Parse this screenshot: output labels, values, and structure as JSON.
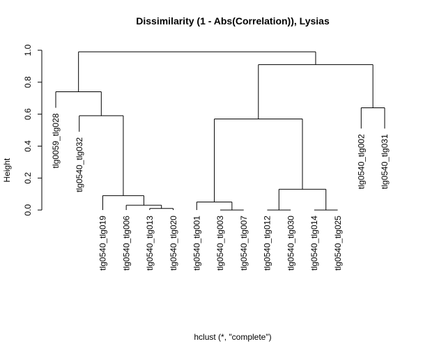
{
  "chart_data": {
    "type": "dendrogram",
    "title": "Dissimilarity (1 - Abs(Correlation)), Lysias",
    "xlabel": "hclust (*, \"complete\")",
    "ylabel": "Height",
    "ylim": [
      0,
      1.0
    ],
    "yticks": [
      "0.0",
      "0.2",
      "0.4",
      "0.6",
      "0.8",
      "1.0"
    ],
    "leaves": [
      {
        "label": "tlg0059_tlg028",
        "height": 0.64
      },
      {
        "label": "tlg0540_tlg032",
        "height": 0.49
      },
      {
        "label": "tlg0540_tlg019",
        "height": 0.0
      },
      {
        "label": "tlg0540_tlg006",
        "height": 0.0
      },
      {
        "label": "tlg0540_tlg013",
        "height": 0.0
      },
      {
        "label": "tlg0540_tlg020",
        "height": 0.0
      },
      {
        "label": "tlg0540_tlg001",
        "height": 0.0
      },
      {
        "label": "tlg0540_tlg003",
        "height": 0.0
      },
      {
        "label": "tlg0540_tlg007",
        "height": 0.0
      },
      {
        "label": "tlg0540_tlg012",
        "height": 0.0
      },
      {
        "label": "tlg0540_tlg030",
        "height": 0.0
      },
      {
        "label": "tlg0540_tlg014",
        "height": 0.0
      },
      {
        "label": "tlg0540_tlg025",
        "height": 0.0
      },
      {
        "label": "tlg0540_tlg002",
        "height": 0.51
      },
      {
        "label": "tlg0540_tlg031",
        "height": 0.51
      }
    ],
    "merges": [
      {
        "left": "L5",
        "right": "L6",
        "height": 0.01
      },
      {
        "left": "L4",
        "right": "M1",
        "height": 0.03
      },
      {
        "left": "L3",
        "right": "M2",
        "height": 0.09
      },
      {
        "left": "L2",
        "right": "M3",
        "height": 0.59
      },
      {
        "left": "L1",
        "right": "M4",
        "height": 0.74
      },
      {
        "left": "L8",
        "right": "L9",
        "height": 0.0
      },
      {
        "left": "L7",
        "right": "M6",
        "height": 0.05
      },
      {
        "left": "L10",
        "right": "L11",
        "height": 0.0
      },
      {
        "left": "L12",
        "right": "L13",
        "height": 0.0
      },
      {
        "left": "M8",
        "right": "M9",
        "height": 0.13
      },
      {
        "left": "M7",
        "right": "M10",
        "height": 0.57
      },
      {
        "left": "L14",
        "right": "L15",
        "height": 0.64
      },
      {
        "left": "M11",
        "right": "M12",
        "height": 0.91
      },
      {
        "left": "M5",
        "right": "M13",
        "height": 0.99
      }
    ]
  }
}
